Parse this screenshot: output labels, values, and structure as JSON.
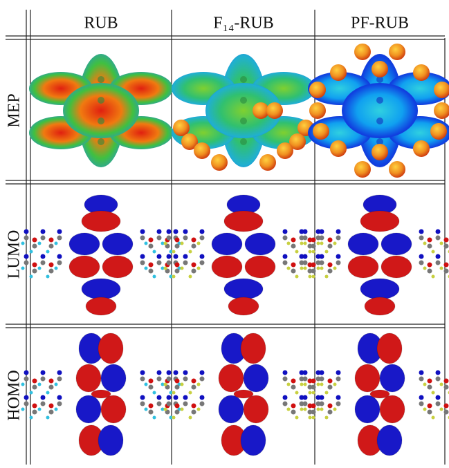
{
  "table": {
    "columns": [
      "RUB",
      "F₁₄-RUB",
      "PF-RUB"
    ],
    "rows": [
      "MEP",
      "LUMO",
      "HOMO"
    ]
  }
}
